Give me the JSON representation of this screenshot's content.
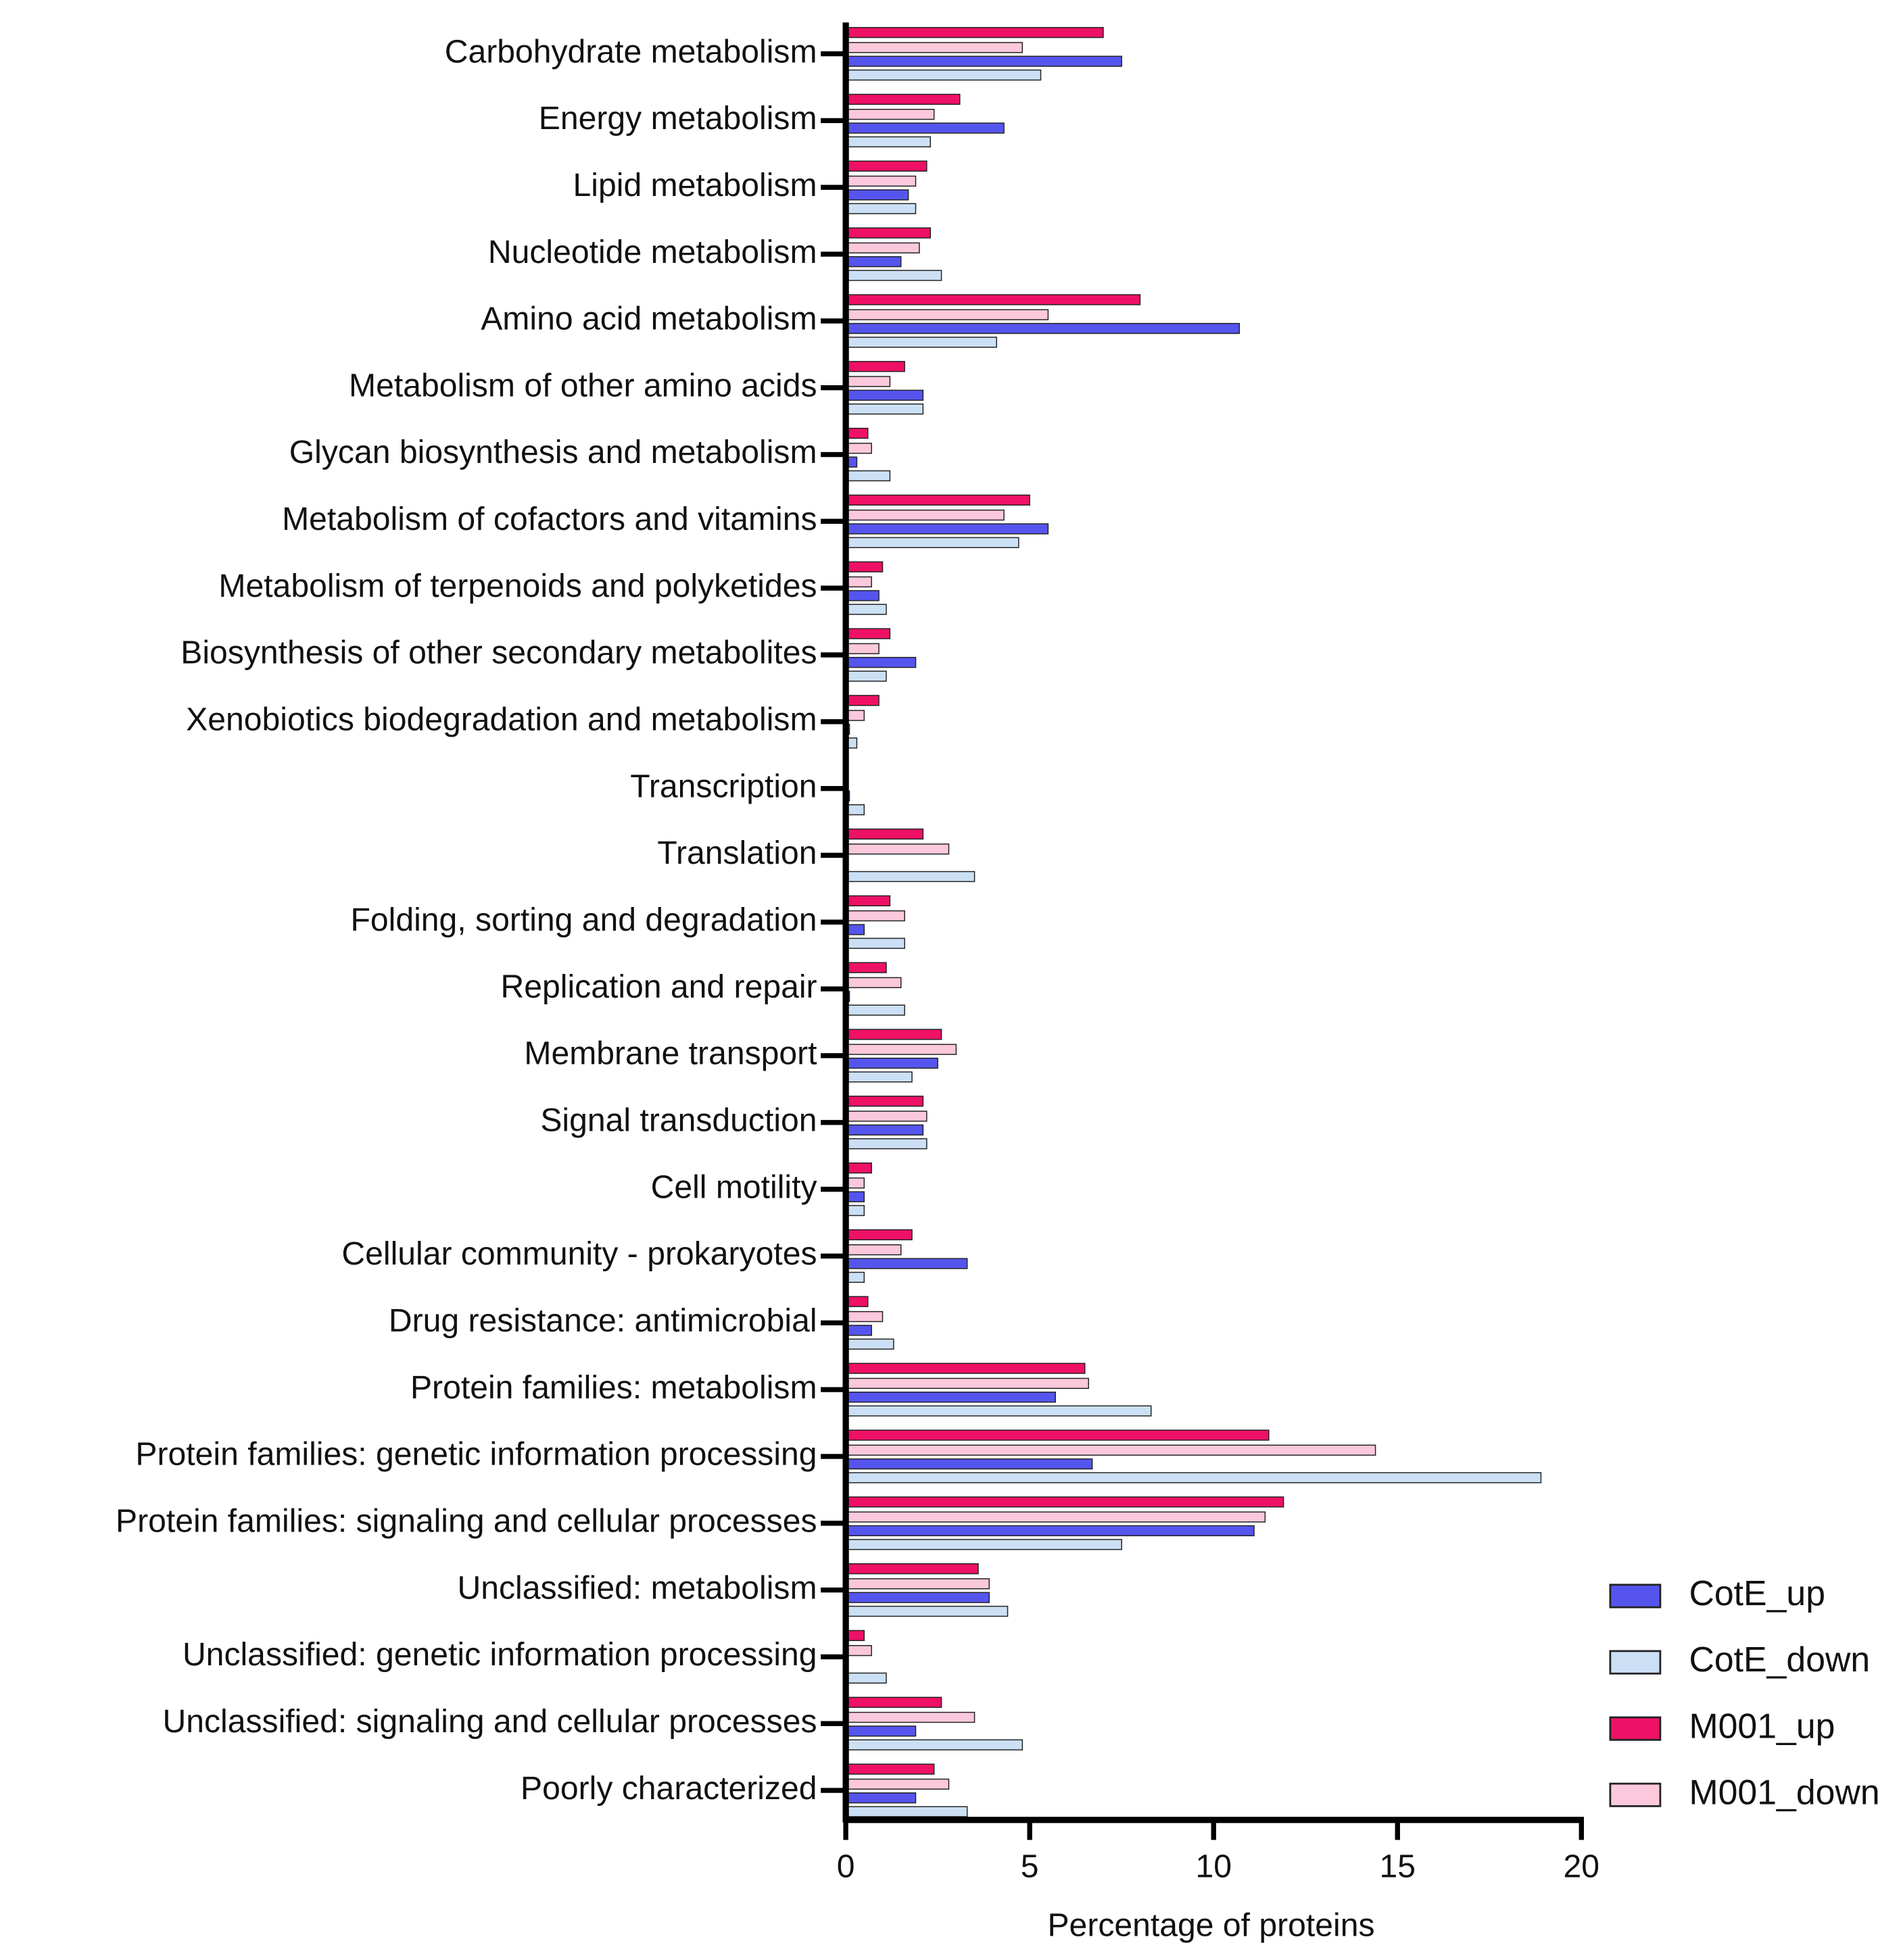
{
  "chart_data": {
    "type": "bar",
    "orientation": "horizontal",
    "x_label": "Percentage of proteins",
    "categories": [
      "Carbohydrate metabolism",
      "Energy metabolism",
      "Lipid metabolism",
      "Nucleotide metabolism",
      "Amino acid metabolism",
      "Metabolism of other amino acids",
      "Glycan biosynthesis and metabolism",
      "Metabolism of cofactors and vitamins",
      "Metabolism of terpenoids and polyketides",
      "Biosynthesis of other secondary metabolites",
      "Xenobiotics biodegradation and metabolism",
      "Transcription",
      "Translation",
      "Folding, sorting and degradation",
      "Replication and repair",
      "Membrane transport",
      "Signal transduction",
      "Cell motility",
      "Cellular community - prokaryotes",
      "Drug resistance: antimicrobial",
      "Protein families: metabolism",
      "Protein families: genetic information processing",
      "Protein families: signaling and cellular processes",
      "Unclassified: metabolism",
      "Unclassified: genetic information processing",
      "Unclassified: signaling and cellular processes",
      "Poorly characterized"
    ],
    "series": [
      {
        "name": "CotE_up",
        "color": "#5555ee",
        "values": [
          7.5,
          4.3,
          1.7,
          1.5,
          10.7,
          2.1,
          0.3,
          5.5,
          0.9,
          1.9,
          0.1,
          0.1,
          0,
          0.5,
          0.1,
          2.5,
          2.1,
          0.5,
          3.3,
          0.7,
          5.7,
          6.7,
          11.1,
          3.9,
          0,
          1.9,
          1.9
        ]
      },
      {
        "name": "CotE_down",
        "color": "#cce0f5",
        "values": [
          5.3,
          2.3,
          1.9,
          2.6,
          4.1,
          2.1,
          1.2,
          4.7,
          1.1,
          1.1,
          0.3,
          0.5,
          3.5,
          1.6,
          1.6,
          1.8,
          2.2,
          0.5,
          0.5,
          1.3,
          8.3,
          18.9,
          7.5,
          4.4,
          1.1,
          4.8,
          3.3
        ]
      },
      {
        "name": "M001_up",
        "color": "#ee1166",
        "values": [
          7.0,
          3.1,
          2.2,
          2.3,
          8.0,
          1.6,
          0.6,
          5.0,
          1.0,
          1.2,
          0.9,
          0,
          2.1,
          1.2,
          1.1,
          2.6,
          2.1,
          0.7,
          1.8,
          0.6,
          6.5,
          11.5,
          11.9,
          3.6,
          0.5,
          2.6,
          2.4
        ]
      },
      {
        "name": "M001_down",
        "color": "#fbc8dc",
        "values": [
          4.8,
          2.4,
          1.9,
          2.0,
          5.5,
          1.2,
          0.7,
          4.3,
          0.7,
          0.9,
          0.5,
          0,
          2.8,
          1.6,
          1.5,
          3.0,
          2.2,
          0.5,
          1.5,
          1.0,
          6.6,
          14.4,
          11.4,
          3.9,
          0.7,
          3.5,
          2.8
        ]
      }
    ],
    "xlim": [
      0,
      20
    ],
    "xticks": [
      0,
      5,
      10,
      15,
      20
    ],
    "legend": "lower-right"
  }
}
